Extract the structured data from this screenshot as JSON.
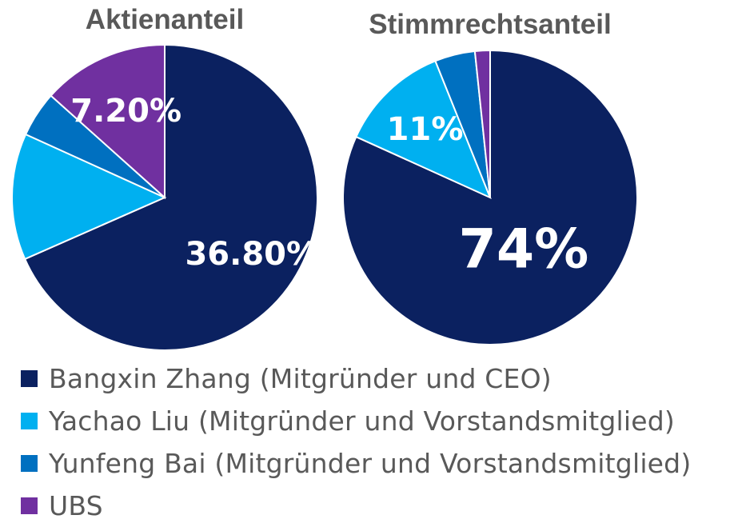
{
  "chart_data": [
    {
      "type": "pie",
      "title": "Aktienanteil",
      "categories": [
        "Bangxin Zhang (Mitgründer und CEO)",
        "Yachao Liu (Mitgründer und Vorstandsmitglied)",
        "Yunfeng Bai (Mitgründer und Vorstandsmitglied)",
        "UBS"
      ],
      "values": [
        36.8,
        7.2,
        2.6,
        7.2
      ],
      "data_labels": [
        "36.80%",
        "",
        "",
        "7.20%"
      ]
    },
    {
      "type": "pie",
      "title": "Stimmrechtsanteil",
      "categories": [
        "Bangxin Zhang (Mitgründer und CEO)",
        "Yachao Liu (Mitgründer und Vorstandsmitglied)",
        "Yunfeng Bai (Mitgründer und Vorstandsmitglied)",
        "UBS"
      ],
      "values": [
        74,
        11,
        4,
        1.5
      ],
      "data_labels": [
        "74%",
        "11%",
        "",
        ""
      ]
    }
  ],
  "colors": [
    "#0b2160",
    "#00b0f0",
    "#0070c0",
    "#7030a0"
  ],
  "legend": {
    "placement": "bottom",
    "items": [
      {
        "label": "Bangxin Zhang (Mitgründer und CEO)",
        "color": "#0b2160"
      },
      {
        "label": "Yachao Liu (Mitgründer und Vorstandsmitglied)",
        "color": "#00b0f0"
      },
      {
        "label": "Yunfeng Bai (Mitgründer und Vorstandsmitglied)",
        "color": "#0070c0"
      },
      {
        "label": "UBS",
        "color": "#7030a0"
      }
    ]
  }
}
